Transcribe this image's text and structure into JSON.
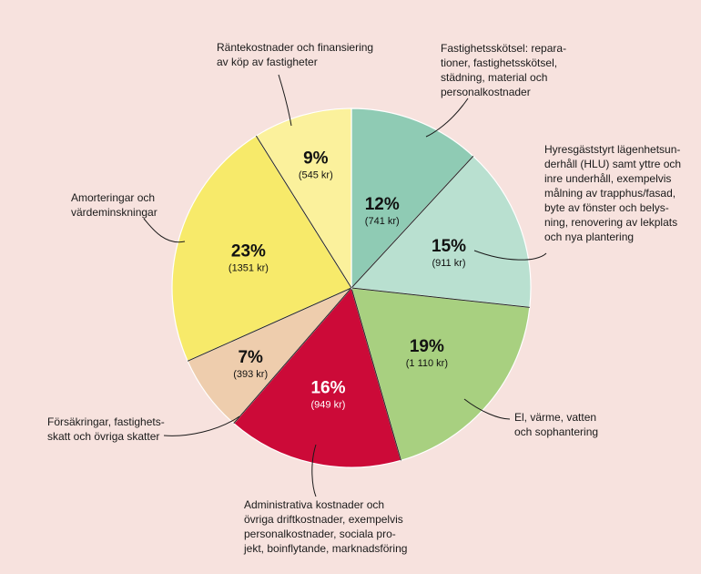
{
  "chart_data": {
    "type": "pie",
    "title": "",
    "slices": [
      {
        "value": 12,
        "percent_label": "12%",
        "amount_label": "(741 kr)",
        "color": "#8fcbb4",
        "text_color": "#111111",
        "label_lines": [
          "Fastighetsskötsel: repara-",
          "tioner, fastighetsskötsel,",
          "städning, material och",
          "personalkostnader"
        ]
      },
      {
        "value": 15,
        "percent_label": "15%",
        "amount_label": "(911 kr)",
        "color": "#b9e0d0",
        "text_color": "#111111",
        "label_lines": [
          "Hyresgäststyrt lägenhetsun-",
          "derhåll (HLU) samt yttre och",
          "inre underhåll, exempelvis",
          "målning av trapphus/fasad,",
          "byte av fönster och belys-",
          "ning, renovering av lekplats",
          "och nya plantering"
        ]
      },
      {
        "value": 19,
        "percent_label": "19%",
        "amount_label": "(1 110 kr)",
        "color": "#a8d080",
        "text_color": "#111111",
        "label_lines": [
          "El, värme, vatten",
          "och sophantering"
        ]
      },
      {
        "value": 16,
        "percent_label": "16%",
        "amount_label": "(949 kr)",
        "color": "#cc0a38",
        "text_color": "#ffffff",
        "label_lines": [
          "Administrativa kostnader och",
          "övriga driftkostnader, exempelvis",
          "personalkostnader, sociala pro-",
          "jekt, boinflytande, marknadsföring"
        ]
      },
      {
        "value": 7,
        "percent_label": "7%",
        "amount_label": "(393 kr)",
        "color": "#eecdad",
        "text_color": "#111111",
        "label_lines": [
          "Försäkringar, fastighets-",
          "skatt och övriga skatter"
        ]
      },
      {
        "value": 23,
        "percent_label": "23%",
        "amount_label": "(1351 kr)",
        "color": "#f7ea6a",
        "text_color": "#111111",
        "label_lines": [
          "Amorteringar och",
          "värdeminskningar"
        ]
      },
      {
        "value": 9,
        "percent_label": "9%",
        "amount_label": "(545 kr)",
        "color": "#fbf19c",
        "text_color": "#111111",
        "label_lines": [
          "Räntekostnader och finansiering",
          "av köp av fastigheter"
        ]
      }
    ]
  }
}
